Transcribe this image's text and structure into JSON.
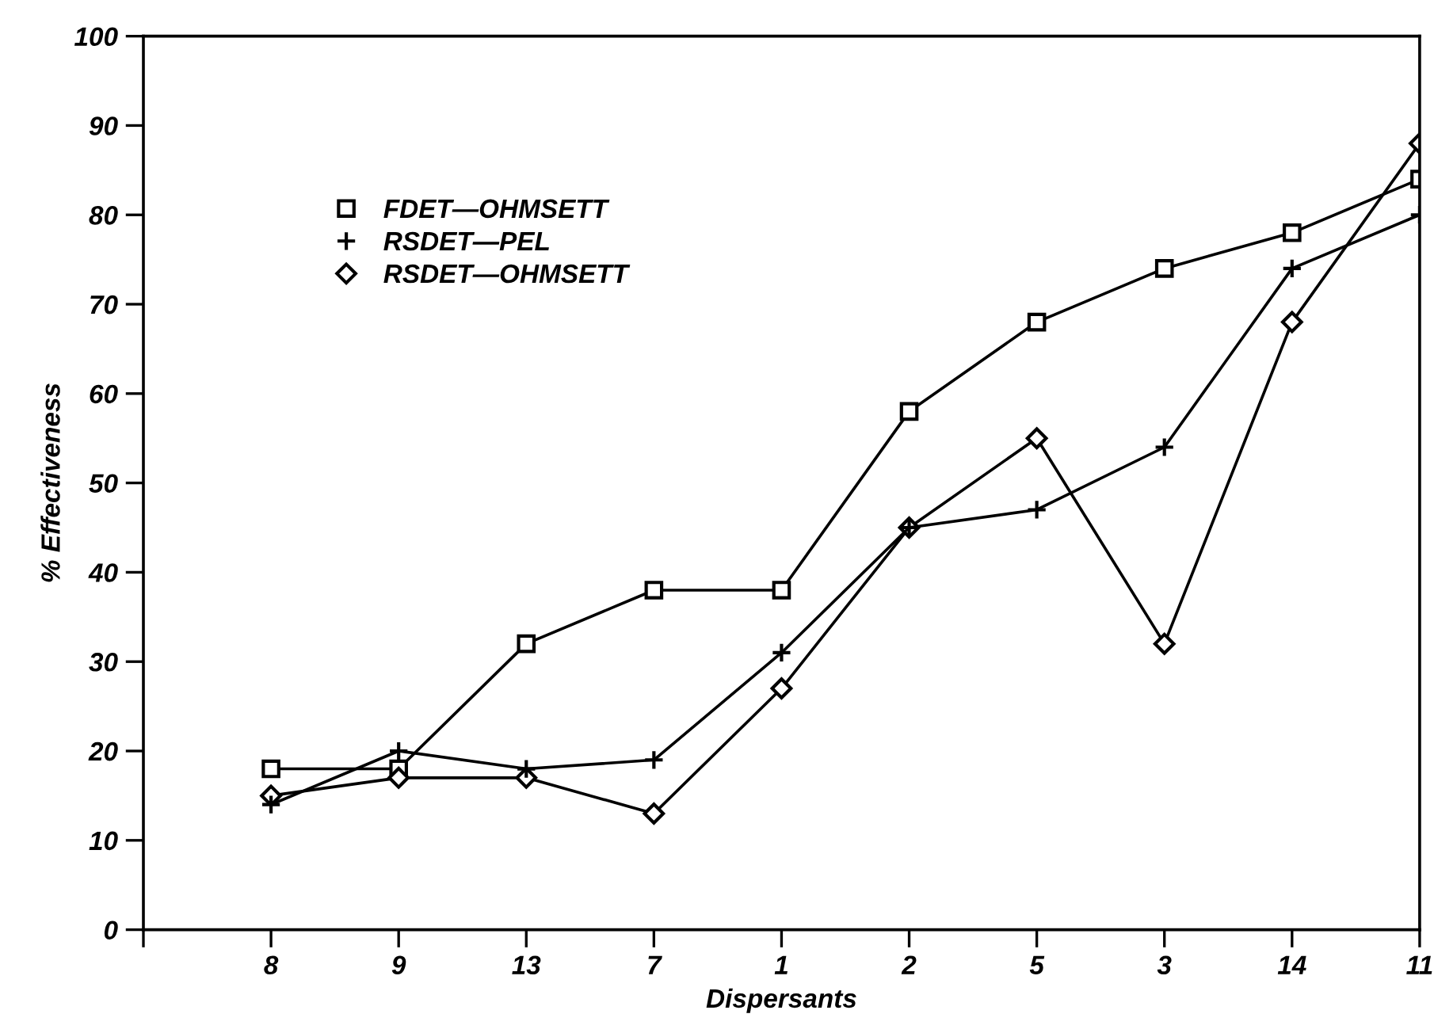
{
  "chart_data": {
    "type": "line",
    "xlabel": "Dispersants",
    "ylabel": "% Effectiveness",
    "categories": [
      "8",
      "9",
      "13",
      "7",
      "1",
      "2",
      "5",
      "3",
      "14",
      "11"
    ],
    "ylim": [
      0,
      100
    ],
    "yticks": [
      0,
      10,
      20,
      30,
      40,
      50,
      60,
      70,
      80,
      90,
      100
    ],
    "grid": false,
    "legend": "top left",
    "line_style": "solid",
    "series": [
      {
        "name": "FDET—OHMSETT",
        "color": "#000000",
        "marker": "square",
        "values": [
          18,
          18,
          32,
          38,
          38,
          58,
          68,
          74,
          78,
          84
        ]
      },
      {
        "name": "RSDET—PEL",
        "color": "#000000",
        "marker": "cross",
        "values": [
          14,
          20,
          18,
          19,
          31,
          45,
          47,
          54,
          74,
          80
        ]
      },
      {
        "name": "RSDET—OHMSETT",
        "color": "#000000",
        "marker": "diamond",
        "values": [
          15,
          17,
          17,
          13,
          27,
          45,
          55,
          32,
          68,
          88
        ]
      }
    ]
  }
}
